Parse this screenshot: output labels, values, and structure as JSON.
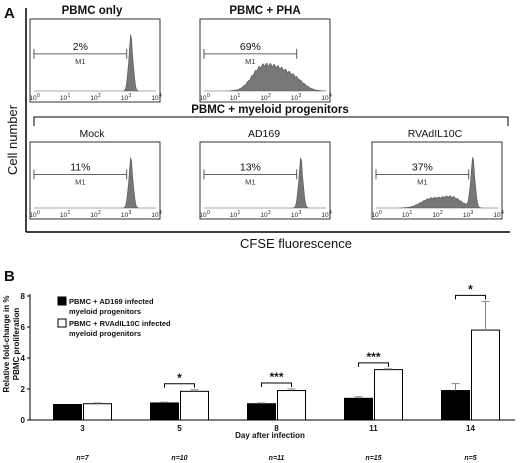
{
  "panel_a": {
    "letter": "A",
    "y_label": "Cell number",
    "x_label": "CFSE fluorescence",
    "group_label": "PBMC + myeloid progenitors",
    "gate_label": "M1",
    "x_tick_labels": [
      "10",
      "0",
      "10",
      "1",
      "10",
      "2",
      "10",
      "3",
      "10",
      "4"
    ]
  },
  "panel_b": {
    "letter": "B",
    "y_label_line1": "Relative fold-change in %",
    "y_label_line2": "PBMC proliferation",
    "x_label": "Day after infection",
    "legend": {
      "black": [
        "PBMC + AD169 infected",
        "myeloid progenitors"
      ],
      "white": [
        "PBMC + RVAdIL10C infected",
        "myeloid progenitors"
      ]
    }
  },
  "chart_data": [
    {
      "type": "area",
      "title": "PBMC only",
      "annotation": "2%",
      "xscale": "log",
      "xlim": [
        1,
        10000
      ],
      "peaks": [
        {
          "x": 1500,
          "height": 1.0
        }
      ],
      "gate": {
        "label": "M1",
        "range": [
          1,
          1100
        ]
      }
    },
    {
      "type": "area",
      "title": "PBMC + PHA",
      "annotation": "69%",
      "xscale": "log",
      "xlim": [
        1,
        10000
      ],
      "peaks": [
        {
          "x": 70,
          "height": 0.38
        },
        {
          "x": 250,
          "height": 0.32
        },
        {
          "x": 900,
          "height": 0.22
        }
      ],
      "gate": {
        "label": "M1",
        "range": [
          1,
          1100
        ]
      }
    },
    {
      "type": "area",
      "title": "Mock",
      "annotation": "11%",
      "xscale": "log",
      "xlim": [
        1,
        10000
      ],
      "peaks": [
        {
          "x": 1500,
          "height": 1.0
        }
      ],
      "gate": {
        "label": "M1",
        "range": [
          1,
          1100
        ]
      }
    },
    {
      "type": "area",
      "title": "AD169",
      "annotation": "13%",
      "xscale": "log",
      "xlim": [
        1,
        10000
      ],
      "peaks": [
        {
          "x": 1500,
          "height": 1.0
        }
      ],
      "gate": {
        "label": "M1",
        "range": [
          1,
          1100
        ]
      }
    },
    {
      "type": "area",
      "title": "RVAdIL10C",
      "annotation": "37%",
      "xscale": "log",
      "xlim": [
        1,
        10000
      ],
      "peaks": [
        {
          "x": 60,
          "height": 0.18
        },
        {
          "x": 300,
          "height": 0.22
        },
        {
          "x": 1500,
          "height": 1.0
        }
      ],
      "gate": {
        "label": "M1",
        "range": [
          1,
          1100
        ]
      }
    },
    {
      "type": "bar",
      "categories": [
        "3",
        "5",
        "8",
        "11",
        "14"
      ],
      "series": [
        {
          "name": "PBMC + AD169 infected myeloid progenitors",
          "color": "#000000",
          "values": [
            1.0,
            1.1,
            1.05,
            1.4,
            1.9
          ],
          "errors": [
            0,
            0.05,
            0.05,
            0.1,
            0.45
          ]
        },
        {
          "name": "PBMC + RVAdIL10C infected myeloid progenitors",
          "color": "#ffffff",
          "values": [
            1.05,
            1.85,
            1.9,
            3.25,
            5.8
          ],
          "errors": [
            0.05,
            0.1,
            0.1,
            0.05,
            1.85
          ]
        }
      ],
      "significance": [
        "",
        "*",
        "***",
        "***",
        "*"
      ],
      "n_labels": [
        "n=7",
        "n=10",
        "n=11",
        "n=15",
        "n=5"
      ],
      "ylim": [
        0,
        8
      ],
      "yticks": [
        0,
        2,
        4,
        6,
        8
      ],
      "xlabel": "Day after infection",
      "ylabel": "Relative fold-change in % PBMC proliferation"
    }
  ]
}
